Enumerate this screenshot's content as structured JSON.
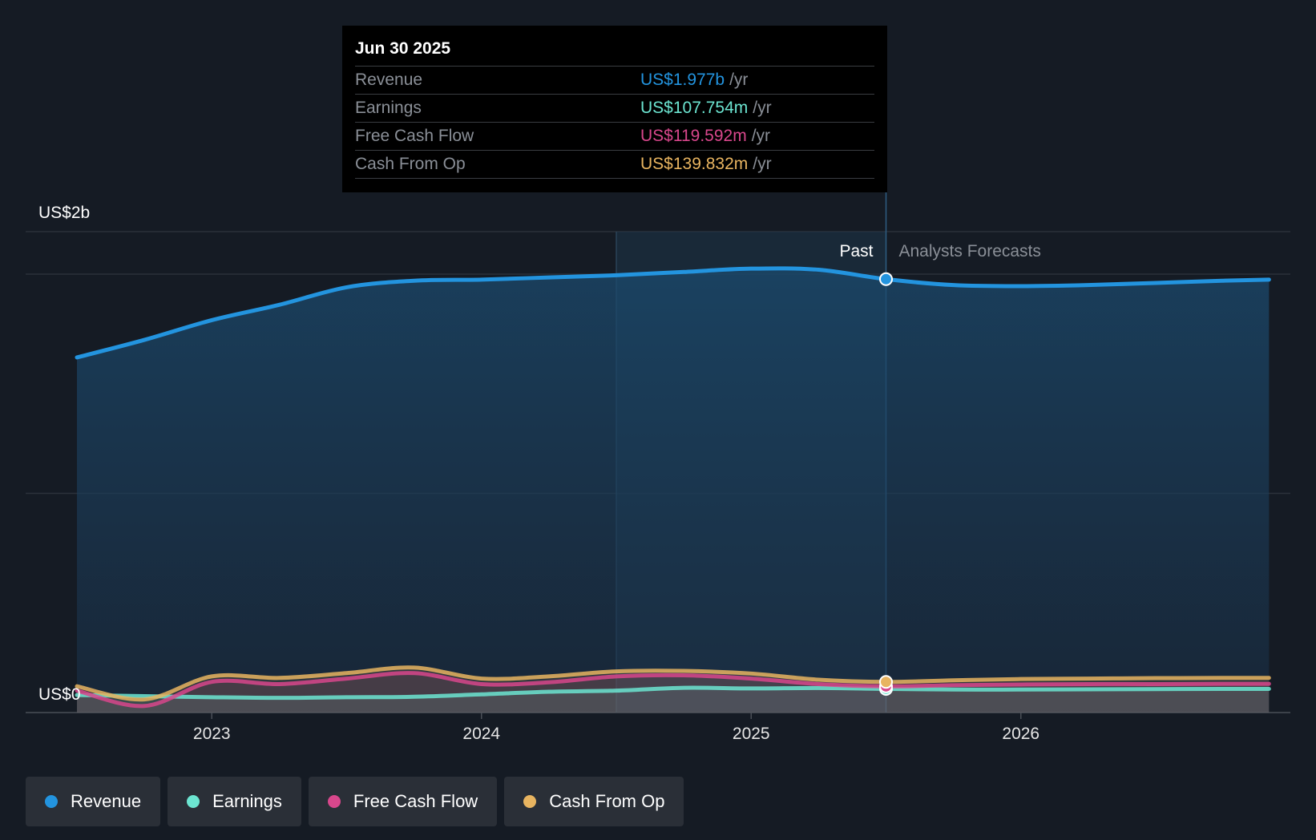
{
  "tooltip": {
    "date": "Jun 30 2025",
    "unit": "/yr",
    "rows": [
      {
        "name": "Revenue",
        "value": "US$1.977b",
        "color": "#2394df"
      },
      {
        "name": "Earnings",
        "value": "US$107.754m",
        "color": "#6ce5d1"
      },
      {
        "name": "Free Cash Flow",
        "value": "US$119.592m",
        "color": "#d8478c"
      },
      {
        "name": "Cash From Op",
        "value": "US$139.832m",
        "color": "#e8b460"
      }
    ]
  },
  "legend": [
    {
      "label": "Revenue",
      "color": "#2394df"
    },
    {
      "label": "Earnings",
      "color": "#6ce5d1"
    },
    {
      "label": "Free Cash Flow",
      "color": "#d8478c"
    },
    {
      "label": "Cash From Op",
      "color": "#e8b460"
    }
  ],
  "chart_data": {
    "type": "line",
    "y_top_label": "US$2b",
    "y_bottom_label": "US$0",
    "ylim": [
      0,
      2.2
    ],
    "xlim": [
      2022.5,
      2026.92
    ],
    "x_ticks": [
      {
        "label": "2023",
        "x": 2023.0
      },
      {
        "label": "2024",
        "x": 2024.0
      },
      {
        "label": "2025",
        "x": 2025.0
      },
      {
        "label": "2026",
        "x": 2026.0
      }
    ],
    "past_label": "Past",
    "forecast_label": "Analysts Forecasts",
    "divider_x": 2025.5,
    "highlight_start_x": 2024.5,
    "grid": true,
    "series": [
      {
        "name": "Revenue",
        "color": "#2394df",
        "points": [
          [
            2022.5,
            1.62
          ],
          [
            2022.75,
            1.7
          ],
          [
            2023.0,
            1.79
          ],
          [
            2023.25,
            1.86
          ],
          [
            2023.5,
            1.94
          ],
          [
            2023.75,
            1.97
          ],
          [
            2024.0,
            1.975
          ],
          [
            2024.25,
            1.985
          ],
          [
            2024.5,
            1.995
          ],
          [
            2024.75,
            2.01
          ],
          [
            2025.0,
            2.025
          ],
          [
            2025.25,
            2.02
          ],
          [
            2025.5,
            1.977
          ],
          [
            2025.75,
            1.95
          ],
          [
            2026.0,
            1.945
          ],
          [
            2026.25,
            1.95
          ],
          [
            2026.5,
            1.96
          ],
          [
            2026.75,
            1.97
          ],
          [
            2026.92,
            1.975
          ]
        ]
      },
      {
        "name": "Earnings",
        "color": "#6ce5d1",
        "points": [
          [
            2022.5,
            0.08
          ],
          [
            2022.75,
            0.075
          ],
          [
            2023.0,
            0.07
          ],
          [
            2023.25,
            0.067
          ],
          [
            2023.5,
            0.07
          ],
          [
            2023.75,
            0.072
          ],
          [
            2024.0,
            0.083
          ],
          [
            2024.25,
            0.095
          ],
          [
            2024.5,
            0.1
          ],
          [
            2024.75,
            0.113
          ],
          [
            2025.0,
            0.11
          ],
          [
            2025.25,
            0.112
          ],
          [
            2025.5,
            0.108
          ],
          [
            2025.75,
            0.105
          ],
          [
            2026.0,
            0.105
          ],
          [
            2026.25,
            0.106
          ],
          [
            2026.5,
            0.107
          ],
          [
            2026.75,
            0.108
          ],
          [
            2026.92,
            0.108
          ]
        ]
      },
      {
        "name": "Free Cash Flow",
        "color": "#d8478c",
        "points": [
          [
            2022.5,
            0.1
          ],
          [
            2022.75,
            0.03
          ],
          [
            2023.0,
            0.14
          ],
          [
            2023.25,
            0.13
          ],
          [
            2023.5,
            0.155
          ],
          [
            2023.75,
            0.18
          ],
          [
            2024.0,
            0.13
          ],
          [
            2024.25,
            0.138
          ],
          [
            2024.5,
            0.165
          ],
          [
            2024.75,
            0.17
          ],
          [
            2025.0,
            0.155
          ],
          [
            2025.25,
            0.13
          ],
          [
            2025.5,
            0.1196
          ],
          [
            2025.75,
            0.125
          ],
          [
            2026.0,
            0.128
          ],
          [
            2026.25,
            0.13
          ],
          [
            2026.5,
            0.13
          ],
          [
            2026.75,
            0.131
          ],
          [
            2026.92,
            0.131
          ]
        ]
      },
      {
        "name": "Cash From Op",
        "color": "#e8b460",
        "points": [
          [
            2022.5,
            0.12
          ],
          [
            2022.75,
            0.06
          ],
          [
            2023.0,
            0.165
          ],
          [
            2023.25,
            0.158
          ],
          [
            2023.5,
            0.18
          ],
          [
            2023.75,
            0.205
          ],
          [
            2024.0,
            0.155
          ],
          [
            2024.25,
            0.165
          ],
          [
            2024.5,
            0.188
          ],
          [
            2024.75,
            0.19
          ],
          [
            2025.0,
            0.178
          ],
          [
            2025.25,
            0.15
          ],
          [
            2025.5,
            0.1398
          ],
          [
            2025.75,
            0.147
          ],
          [
            2026.0,
            0.153
          ],
          [
            2026.25,
            0.155
          ],
          [
            2026.5,
            0.157
          ],
          [
            2026.75,
            0.158
          ],
          [
            2026.92,
            0.158
          ]
        ]
      }
    ]
  }
}
